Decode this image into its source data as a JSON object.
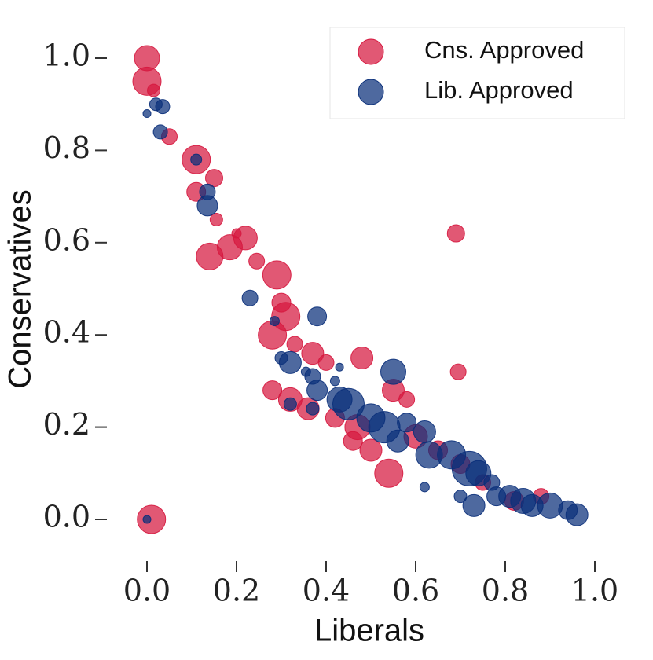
{
  "chart_data": {
    "type": "scatter",
    "x_label": "Liberals",
    "y_label": "Conservatives",
    "xlim": [
      -0.06,
      1.06
    ],
    "ylim": [
      -0.08,
      1.06
    ],
    "xticks": [
      {
        "value": 0,
        "label": "0.0"
      },
      {
        "value": 0.2,
        "label": "0.2"
      },
      {
        "value": 0.4,
        "label": "0.4"
      },
      {
        "value": 0.6,
        "label": "0.6"
      },
      {
        "value": 0.8,
        "label": "0.8"
      },
      {
        "value": 1,
        "label": "1.0"
      }
    ],
    "yticks": [
      {
        "value": 0,
        "label": "0.0"
      },
      {
        "value": 0.2,
        "label": "0.2"
      },
      {
        "value": 0.4,
        "label": "0.4"
      },
      {
        "value": 0.6,
        "label": "0.6"
      },
      {
        "value": 0.8,
        "label": "0.8"
      },
      {
        "value": 1,
        "label": "1.0"
      }
    ],
    "legend_position": "upper right",
    "series": [
      {
        "name": "Cns. Approved",
        "color": "#d6173e",
        "x": [
          0.0,
          0.0,
          0.015,
          0.05,
          0.11,
          0.11,
          0.15,
          0.155,
          0.14,
          0.185,
          0.22,
          0.245,
          0.29,
          0.3,
          0.31,
          0.28,
          0.33,
          0.37,
          0.4,
          0.48,
          0.28,
          0.32,
          0.36,
          0.42,
          0.47,
          0.46,
          0.5,
          0.55,
          0.58,
          0.54,
          0.6,
          0.65,
          0.7,
          0.69,
          0.695,
          0.75,
          0.82,
          0.88,
          0.01,
          0.2
        ],
        "values": [
          1.0,
          0.95,
          0.93,
          0.83,
          0.78,
          0.71,
          0.74,
          0.65,
          0.57,
          0.59,
          0.61,
          0.56,
          0.53,
          0.47,
          0.44,
          0.4,
          0.38,
          0.36,
          0.34,
          0.35,
          0.28,
          0.26,
          0.24,
          0.22,
          0.2,
          0.17,
          0.15,
          0.28,
          0.26,
          0.1,
          0.18,
          0.15,
          0.12,
          0.62,
          0.32,
          0.08,
          0.04,
          0.05,
          0.0,
          0.62
        ],
        "sizes": [
          16,
          18,
          8,
          10,
          18,
          12,
          11,
          8,
          17,
          16,
          15,
          10,
          18,
          12,
          18,
          18,
          10,
          14,
          10,
          14,
          12,
          15,
          14,
          12,
          16,
          12,
          14,
          14,
          10,
          18,
          15,
          12,
          12,
          11,
          10,
          10,
          12,
          10,
          18,
          6
        ]
      },
      {
        "name": "Lib. Approved",
        "color": "#0a2f7a",
        "x": [
          0.0,
          0.02,
          0.035,
          0.03,
          0.11,
          0.135,
          0.135,
          0.23,
          0.285,
          0.3,
          0.32,
          0.38,
          0.37,
          0.355,
          0.42,
          0.38,
          0.43,
          0.45,
          0.37,
          0.32,
          0.5,
          0.55,
          0.53,
          0.56,
          0.62,
          0.63,
          0.62,
          0.58,
          0.68,
          0.72,
          0.74,
          0.7,
          0.73,
          0.77,
          0.81,
          0.84,
          0.86,
          0.9,
          0.94,
          0.96,
          0.0,
          0.43,
          0.78
        ],
        "values": [
          0.88,
          0.9,
          0.895,
          0.84,
          0.78,
          0.71,
          0.68,
          0.48,
          0.43,
          0.35,
          0.34,
          0.44,
          0.31,
          0.32,
          0.3,
          0.28,
          0.26,
          0.25,
          0.24,
          0.25,
          0.22,
          0.32,
          0.2,
          0.17,
          0.19,
          0.14,
          0.07,
          0.21,
          0.14,
          0.11,
          0.1,
          0.05,
          0.03,
          0.08,
          0.05,
          0.04,
          0.03,
          0.03,
          0.02,
          0.01,
          0.0,
          0.33,
          0.05
        ],
        "sizes": [
          5,
          8,
          9,
          9,
          7,
          10,
          13,
          10,
          6,
          8,
          14,
          12,
          10,
          6,
          6,
          13,
          16,
          20,
          8,
          8,
          18,
          16,
          20,
          14,
          14,
          17,
          6,
          12,
          18,
          22,
          16,
          8,
          14,
          10,
          14,
          16,
          14,
          16,
          12,
          14,
          5,
          5,
          12
        ]
      }
    ]
  }
}
